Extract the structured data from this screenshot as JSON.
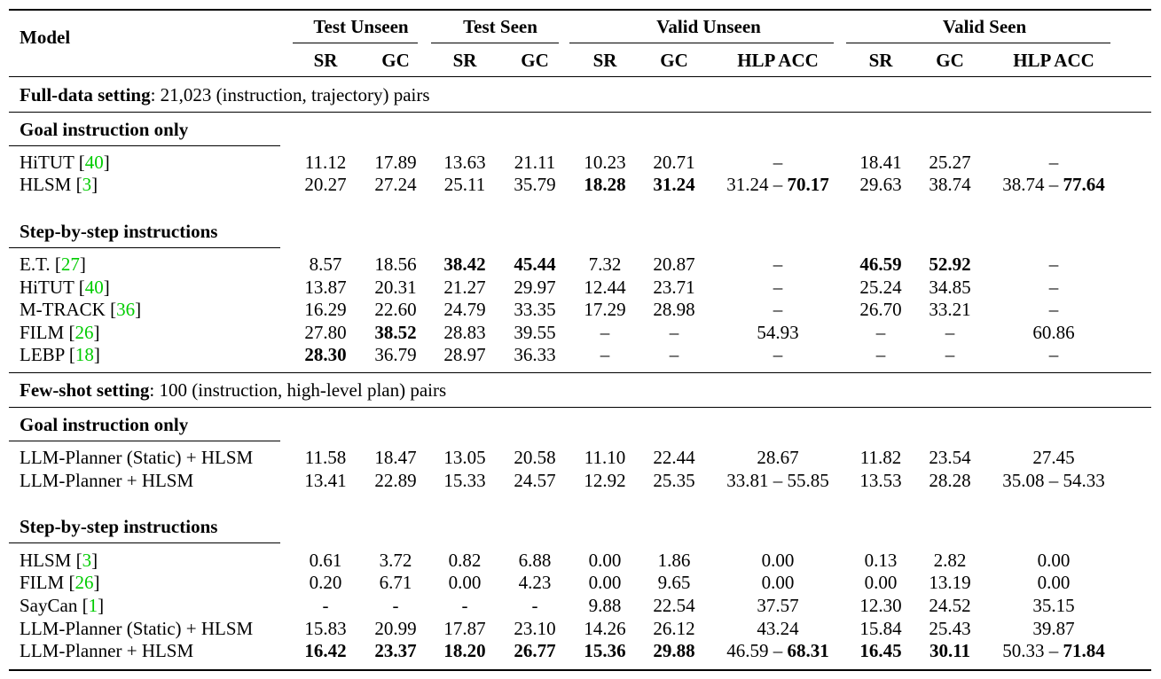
{
  "header": {
    "model": "Model",
    "groups": [
      "Test Unseen",
      "Test Seen",
      "Valid Unseen",
      "Valid Seen"
    ],
    "columns": [
      "SR",
      "GC",
      "SR",
      "GC",
      "SR",
      "GC",
      "HLP ACC",
      "SR",
      "GC",
      "HLP ACC"
    ]
  },
  "sections": [
    {
      "setting": {
        "bold": "Full-data setting",
        "rest": ": 21,023 (instruction, trajectory) pairs"
      },
      "groups": [
        {
          "title": "Goal instruction only",
          "rows": [
            {
              "name": "HiTUT",
              "ref": "40",
              "cells": [
                {
                  "v": "11.12"
                },
                {
                  "v": "17.89"
                },
                {
                  "v": "13.63"
                },
                {
                  "v": "21.11"
                },
                {
                  "v": "10.23"
                },
                {
                  "v": "20.71"
                },
                {
                  "v": "–"
                },
                {
                  "v": "18.41"
                },
                {
                  "v": "25.27"
                },
                {
                  "v": "–"
                }
              ]
            },
            {
              "name": "HLSM",
              "ref": "3",
              "cells": [
                {
                  "v": "20.27"
                },
                {
                  "v": "27.24"
                },
                {
                  "v": "25.11"
                },
                {
                  "v": "35.79"
                },
                {
                  "v": "18.28",
                  "b": true
                },
                {
                  "v": "31.24",
                  "b": true
                },
                {
                  "v": "31.24 – ",
                  "v2": "70.17"
                },
                {
                  "v": "29.63"
                },
                {
                  "v": "38.74"
                },
                {
                  "v": "38.74 – ",
                  "v2": "77.64"
                }
              ]
            }
          ]
        },
        {
          "title": "Step-by-step instructions",
          "rows": [
            {
              "name": "E.T.",
              "ref": "27",
              "cells": [
                {
                  "v": "8.57"
                },
                {
                  "v": "18.56"
                },
                {
                  "v": "38.42",
                  "b": true
                },
                {
                  "v": "45.44",
                  "b": true
                },
                {
                  "v": "7.32"
                },
                {
                  "v": "20.87"
                },
                {
                  "v": "–"
                },
                {
                  "v": "46.59",
                  "b": true
                },
                {
                  "v": "52.92",
                  "b": true
                },
                {
                  "v": "–"
                }
              ]
            },
            {
              "name": "HiTUT",
              "ref": "40",
              "cells": [
                {
                  "v": "13.87"
                },
                {
                  "v": "20.31"
                },
                {
                  "v": "21.27"
                },
                {
                  "v": "29.97"
                },
                {
                  "v": "12.44"
                },
                {
                  "v": "23.71"
                },
                {
                  "v": "–"
                },
                {
                  "v": "25.24"
                },
                {
                  "v": "34.85"
                },
                {
                  "v": "–"
                }
              ]
            },
            {
              "name": "M-TRACK",
              "ref": "36",
              "cells": [
                {
                  "v": "16.29"
                },
                {
                  "v": "22.60"
                },
                {
                  "v": "24.79"
                },
                {
                  "v": "33.35"
                },
                {
                  "v": "17.29"
                },
                {
                  "v": "28.98"
                },
                {
                  "v": "–"
                },
                {
                  "v": "26.70"
                },
                {
                  "v": "33.21"
                },
                {
                  "v": "–"
                }
              ]
            },
            {
              "name": "FILM",
              "ref": "26",
              "cells": [
                {
                  "v": "27.80"
                },
                {
                  "v": "38.52",
                  "b": true
                },
                {
                  "v": "28.83"
                },
                {
                  "v": "39.55"
                },
                {
                  "v": "–"
                },
                {
                  "v": "–"
                },
                {
                  "v": "54.93"
                },
                {
                  "v": "–"
                },
                {
                  "v": "–"
                },
                {
                  "v": "60.86"
                }
              ]
            },
            {
              "name": "LEBP",
              "ref": "18",
              "cells": [
                {
                  "v": "28.30",
                  "b": true
                },
                {
                  "v": "36.79"
                },
                {
                  "v": "28.97"
                },
                {
                  "v": "36.33"
                },
                {
                  "v": "–"
                },
                {
                  "v": "–"
                },
                {
                  "v": "–"
                },
                {
                  "v": "–"
                },
                {
                  "v": "–"
                },
                {
                  "v": "–"
                }
              ]
            }
          ]
        }
      ]
    },
    {
      "setting": {
        "bold": "Few-shot setting",
        "rest": ": 100 (instruction, high-level plan) pairs"
      },
      "groups": [
        {
          "title": "Goal instruction only",
          "rows": [
            {
              "name": "LLM-Planner (Static) + HLSM",
              "ref": "",
              "cells": [
                {
                  "v": "11.58"
                },
                {
                  "v": "18.47"
                },
                {
                  "v": "13.05"
                },
                {
                  "v": "20.58"
                },
                {
                  "v": "11.10"
                },
                {
                  "v": "22.44"
                },
                {
                  "v": "28.67"
                },
                {
                  "v": "11.82"
                },
                {
                  "v": "23.54"
                },
                {
                  "v": "27.45"
                }
              ]
            },
            {
              "name": "LLM-Planner + HLSM",
              "ref": "",
              "cells": [
                {
                  "v": "13.41"
                },
                {
                  "v": "22.89"
                },
                {
                  "v": "15.33"
                },
                {
                  "v": "24.57"
                },
                {
                  "v": "12.92"
                },
                {
                  "v": "25.35"
                },
                {
                  "v": "33.81 – 55.85"
                },
                {
                  "v": "13.53"
                },
                {
                  "v": "28.28"
                },
                {
                  "v": "35.08 – 54.33"
                }
              ]
            }
          ]
        },
        {
          "title": "Step-by-step instructions",
          "rows": [
            {
              "name": "HLSM",
              "ref": "3",
              "cells": [
                {
                  "v": "0.61"
                },
                {
                  "v": "3.72"
                },
                {
                  "v": "0.82"
                },
                {
                  "v": "6.88"
                },
                {
                  "v": "0.00"
                },
                {
                  "v": "1.86"
                },
                {
                  "v": "0.00"
                },
                {
                  "v": "0.13"
                },
                {
                  "v": "2.82"
                },
                {
                  "v": "0.00"
                }
              ]
            },
            {
              "name": "FILM",
              "ref": "26",
              "cells": [
                {
                  "v": "0.20"
                },
                {
                  "v": "6.71"
                },
                {
                  "v": "0.00"
                },
                {
                  "v": "4.23"
                },
                {
                  "v": "0.00"
                },
                {
                  "v": "9.65"
                },
                {
                  "v": "0.00"
                },
                {
                  "v": "0.00"
                },
                {
                  "v": "13.19"
                },
                {
                  "v": "0.00"
                }
              ]
            },
            {
              "name": "SayCan",
              "ref": "1",
              "cells": [
                {
                  "v": "-"
                },
                {
                  "v": "-"
                },
                {
                  "v": "-"
                },
                {
                  "v": "-"
                },
                {
                  "v": "9.88"
                },
                {
                  "v": "22.54"
                },
                {
                  "v": "37.57"
                },
                {
                  "v": "12.30"
                },
                {
                  "v": "24.52"
                },
                {
                  "v": "35.15"
                }
              ]
            },
            {
              "name": "LLM-Planner (Static) + HLSM",
              "ref": "",
              "cells": [
                {
                  "v": "15.83"
                },
                {
                  "v": "20.99"
                },
                {
                  "v": "17.87"
                },
                {
                  "v": "23.10"
                },
                {
                  "v": "14.26"
                },
                {
                  "v": "26.12"
                },
                {
                  "v": "43.24"
                },
                {
                  "v": "15.84"
                },
                {
                  "v": "25.43"
                },
                {
                  "v": "39.87"
                }
              ]
            },
            {
              "name": "LLM-Planner + HLSM",
              "ref": "",
              "cells": [
                {
                  "v": "16.42",
                  "b": true
                },
                {
                  "v": "23.37",
                  "b": true
                },
                {
                  "v": "18.20",
                  "b": true
                },
                {
                  "v": "26.77",
                  "b": true
                },
                {
                  "v": "15.36",
                  "b": true
                },
                {
                  "v": "29.88",
                  "b": true
                },
                {
                  "v": "46.59 – ",
                  "v2": "68.31"
                },
                {
                  "v": "16.45",
                  "b": true
                },
                {
                  "v": "30.11",
                  "b": true
                },
                {
                  "v": "50.33 – ",
                  "v2": "71.84"
                }
              ]
            }
          ]
        }
      ]
    }
  ]
}
